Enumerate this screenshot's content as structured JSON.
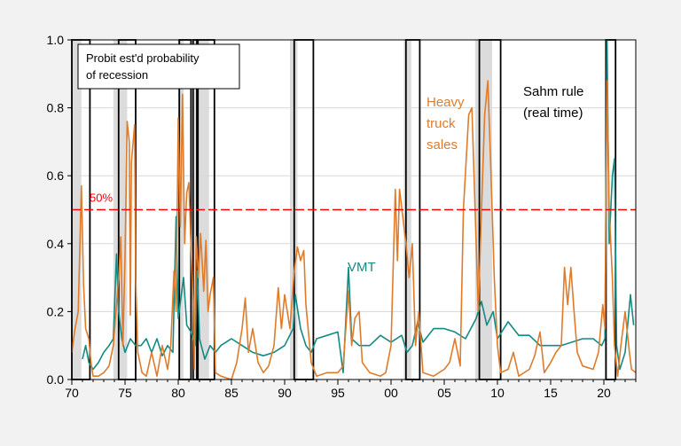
{
  "chart_data": {
    "type": "line",
    "title": "",
    "xlabel": "",
    "ylabel": "",
    "xlim": [
      1970,
      2023
    ],
    "ylim": [
      0,
      1
    ],
    "grid": "horizontal",
    "x_ticks": [
      1970,
      1975,
      1980,
      1985,
      1990,
      1995,
      2000,
      2005,
      2010,
      2015,
      2020
    ],
    "x_tick_labels": [
      "70",
      "75",
      "80",
      "85",
      "90",
      "95",
      "00",
      "05",
      "10",
      "15",
      "20"
    ],
    "y_ticks": [
      0,
      0.2,
      0.4,
      0.6,
      0.8,
      1.0
    ],
    "y_tick_labels": [
      "0.0",
      "0.2",
      "0.4",
      "0.6",
      "0.8",
      "1.0"
    ],
    "legend_box_text": [
      "Probit est'd probability",
      "of recession"
    ],
    "threshold": {
      "value": 0.5,
      "label": "50%",
      "color": "#ff0000"
    },
    "recession_shading": [
      [
        1969.9,
        1970.9
      ],
      [
        1973.9,
        1975.2
      ],
      [
        1980.0,
        1980.5
      ],
      [
        1981.5,
        1982.9
      ],
      [
        1990.5,
        1991.2
      ],
      [
        2001.2,
        2001.9
      ],
      [
        2007.9,
        2009.5
      ],
      [
        2020.1,
        2020.3
      ]
    ],
    "sahm_rule_periods": {
      "label": [
        "Sahm rule",
        "(real time)"
      ],
      "color": "#000000",
      "periods": [
        [
          1970.0,
          1971.7
        ],
        [
          1974.4,
          1976.0
        ],
        [
          1980.1,
          1981.2
        ],
        [
          1981.4,
          1981.75
        ],
        [
          1981.85,
          1983.4
        ],
        [
          1990.9,
          1992.7
        ],
        [
          2001.4,
          2002.7
        ],
        [
          2008.3,
          2010.3
        ],
        [
          2020.2,
          2021.1
        ]
      ]
    },
    "series": [
      {
        "name": "Heavy truck sales",
        "label_lines": [
          "Heavy",
          "truck",
          "sales"
        ],
        "color": "#e07b2a",
        "points": [
          [
            1970.0,
            0.08
          ],
          [
            1970.3,
            0.15
          ],
          [
            1970.6,
            0.2
          ],
          [
            1970.9,
            0.57
          ],
          [
            1971.1,
            0.28
          ],
          [
            1971.3,
            0.15
          ],
          [
            1971.6,
            0.12
          ],
          [
            1971.8,
            0.05
          ],
          [
            1972.0,
            0.01
          ],
          [
            1972.5,
            0.01
          ],
          [
            1973.0,
            0.02
          ],
          [
            1973.5,
            0.04
          ],
          [
            1973.9,
            0.1
          ],
          [
            1974.2,
            0.22
          ],
          [
            1974.4,
            0.3
          ],
          [
            1974.6,
            0.42
          ],
          [
            1974.8,
            0.1
          ],
          [
            1975.0,
            0.36
          ],
          [
            1975.2,
            0.76
          ],
          [
            1975.4,
            0.7
          ],
          [
            1975.5,
            0.19
          ],
          [
            1975.6,
            0.64
          ],
          [
            1975.9,
            0.75
          ],
          [
            1976.0,
            0.3
          ],
          [
            1976.2,
            0.08
          ],
          [
            1976.6,
            0.02
          ],
          [
            1977.0,
            0.01
          ],
          [
            1977.5,
            0.08
          ],
          [
            1978.0,
            0.01
          ],
          [
            1978.5,
            0.1
          ],
          [
            1979.0,
            0.03
          ],
          [
            1979.3,
            0.1
          ],
          [
            1979.6,
            0.32
          ],
          [
            1979.8,
            0.2
          ],
          [
            1980.0,
            0.77
          ],
          [
            1980.2,
            0.45
          ],
          [
            1980.4,
            0.84
          ],
          [
            1980.6,
            0.4
          ],
          [
            1980.8,
            0.55
          ],
          [
            1981.0,
            0.58
          ],
          [
            1981.2,
            0.39
          ],
          [
            1981.4,
            0.22
          ],
          [
            1981.5,
            0.03
          ],
          [
            1981.7,
            0.42
          ],
          [
            1981.9,
            0.3
          ],
          [
            1982.1,
            0.43
          ],
          [
            1982.4,
            0.26
          ],
          [
            1982.6,
            0.41
          ],
          [
            1982.8,
            0.2
          ],
          [
            1983.0,
            0.25
          ],
          [
            1983.3,
            0.3
          ],
          [
            1983.5,
            0.02
          ],
          [
            1984.0,
            0.01
          ],
          [
            1985.0,
            0.0
          ],
          [
            1985.5,
            0.05
          ],
          [
            1986.0,
            0.15
          ],
          [
            1986.3,
            0.24
          ],
          [
            1986.6,
            0.08
          ],
          [
            1987.0,
            0.15
          ],
          [
            1987.5,
            0.05
          ],
          [
            1988.0,
            0.02
          ],
          [
            1988.5,
            0.04
          ],
          [
            1989.0,
            0.1
          ],
          [
            1989.4,
            0.27
          ],
          [
            1989.7,
            0.15
          ],
          [
            1990.0,
            0.25
          ],
          [
            1990.5,
            0.15
          ],
          [
            1990.9,
            0.32
          ],
          [
            1991.2,
            0.39
          ],
          [
            1991.5,
            0.35
          ],
          [
            1991.8,
            0.38
          ],
          [
            1992.0,
            0.22
          ],
          [
            1992.5,
            0.05
          ],
          [
            1993.0,
            0.01
          ],
          [
            1994.0,
            0.02
          ],
          [
            1995.0,
            0.02
          ],
          [
            1995.5,
            0.04
          ],
          [
            1996.0,
            0.26
          ],
          [
            1996.3,
            0.1
          ],
          [
            1996.6,
            0.18
          ],
          [
            1997.0,
            0.2
          ],
          [
            1997.3,
            0.05
          ],
          [
            1998.0,
            0.02
          ],
          [
            1999.0,
            0.01
          ],
          [
            1999.5,
            0.02
          ],
          [
            2000.0,
            0.1
          ],
          [
            2000.4,
            0.56
          ],
          [
            2000.6,
            0.35
          ],
          [
            2000.8,
            0.56
          ],
          [
            2001.1,
            0.48
          ],
          [
            2001.4,
            0.4
          ],
          [
            2001.7,
            0.3
          ],
          [
            2002.0,
            0.4
          ],
          [
            2002.3,
            0.1
          ],
          [
            2002.6,
            0.2
          ],
          [
            2003.0,
            0.02
          ],
          [
            2004.0,
            0.01
          ],
          [
            2005.0,
            0.03
          ],
          [
            2005.5,
            0.05
          ],
          [
            2006.0,
            0.12
          ],
          [
            2006.5,
            0.04
          ],
          [
            2006.8,
            0.5
          ],
          [
            2007.3,
            0.78
          ],
          [
            2007.6,
            0.8
          ],
          [
            2007.9,
            0.5
          ],
          [
            2008.2,
            0.2
          ],
          [
            2008.5,
            0.5
          ],
          [
            2008.8,
            0.78
          ],
          [
            2009.1,
            0.88
          ],
          [
            2009.4,
            0.6
          ],
          [
            2009.7,
            0.3
          ],
          [
            2010.0,
            0.1
          ],
          [
            2010.3,
            0.02
          ],
          [
            2011.0,
            0.03
          ],
          [
            2011.5,
            0.08
          ],
          [
            2012.0,
            0.01
          ],
          [
            2013.0,
            0.03
          ],
          [
            2013.5,
            0.07
          ],
          [
            2014.0,
            0.14
          ],
          [
            2014.4,
            0.02
          ],
          [
            2015.0,
            0.05
          ],
          [
            2015.5,
            0.08
          ],
          [
            2016.0,
            0.1
          ],
          [
            2016.3,
            0.33
          ],
          [
            2016.6,
            0.22
          ],
          [
            2016.9,
            0.33
          ],
          [
            2017.2,
            0.2
          ],
          [
            2017.5,
            0.08
          ],
          [
            2018.0,
            0.04
          ],
          [
            2019.0,
            0.03
          ],
          [
            2019.5,
            0.08
          ],
          [
            2019.9,
            0.22
          ],
          [
            2020.1,
            0.15
          ],
          [
            2020.3,
            0.88
          ],
          [
            2020.5,
            0.5
          ],
          [
            2020.8,
            0.3
          ],
          [
            2021.0,
            0.1
          ],
          [
            2021.3,
            0.01
          ],
          [
            2021.6,
            0.1
          ],
          [
            2022.0,
            0.2
          ],
          [
            2022.4,
            0.08
          ],
          [
            2022.6,
            0.03
          ],
          [
            2023.0,
            0.02
          ]
        ]
      },
      {
        "name": "VMT",
        "label_lines": [
          "VMT"
        ],
        "color": "#138a84",
        "points": [
          [
            1971.0,
            0.06
          ],
          [
            1971.3,
            0.1
          ],
          [
            1971.6,
            0.05
          ],
          [
            1972.0,
            0.03
          ],
          [
            1972.5,
            0.05
          ],
          [
            1973.0,
            0.08
          ],
          [
            1973.5,
            0.1
          ],
          [
            1973.9,
            0.12
          ],
          [
            1974.2,
            0.37
          ],
          [
            1974.4,
            0.2
          ],
          [
            1974.7,
            0.12
          ],
          [
            1975.0,
            0.08
          ],
          [
            1975.5,
            0.12
          ],
          [
            1976.0,
            0.1
          ],
          [
            1976.5,
            0.1
          ],
          [
            1977.0,
            0.12
          ],
          [
            1977.5,
            0.08
          ],
          [
            1978.0,
            0.12
          ],
          [
            1978.5,
            0.07
          ],
          [
            1979.0,
            0.1
          ],
          [
            1979.5,
            0.08
          ],
          [
            1979.8,
            0.48
          ],
          [
            1980.0,
            0.18
          ],
          [
            1980.5,
            0.3
          ],
          [
            1980.8,
            0.16
          ],
          [
            1981.2,
            0.14
          ],
          [
            1981.6,
            0.1
          ],
          [
            1981.8,
            0.32
          ],
          [
            1982.0,
            0.12
          ],
          [
            1982.5,
            0.06
          ],
          [
            1983.0,
            0.1
          ],
          [
            1983.5,
            0.08
          ],
          [
            1984.0,
            0.1
          ],
          [
            1985.0,
            0.12
          ],
          [
            1986.0,
            0.1
          ],
          [
            1987.0,
            0.08
          ],
          [
            1988.0,
            0.07
          ],
          [
            1989.0,
            0.08
          ],
          [
            1990.0,
            0.1
          ],
          [
            1990.8,
            0.15
          ],
          [
            1991.0,
            0.25
          ],
          [
            1991.5,
            0.15
          ],
          [
            1992.0,
            0.1
          ],
          [
            1992.5,
            0.08
          ],
          [
            1993.0,
            0.12
          ],
          [
            1994.0,
            0.13
          ],
          [
            1995.0,
            0.14
          ],
          [
            1995.5,
            0.02
          ],
          [
            1996.0,
            0.33
          ],
          [
            1996.3,
            0.12
          ],
          [
            1997.0,
            0.1
          ],
          [
            1998.0,
            0.1
          ],
          [
            1999.0,
            0.13
          ],
          [
            2000.0,
            0.11
          ],
          [
            2001.0,
            0.13
          ],
          [
            2001.5,
            0.08
          ],
          [
            2002.0,
            0.1
          ],
          [
            2002.5,
            0.17
          ],
          [
            2003.0,
            0.11
          ],
          [
            2004.0,
            0.15
          ],
          [
            2005.0,
            0.15
          ],
          [
            2006.0,
            0.14
          ],
          [
            2007.0,
            0.12
          ],
          [
            2008.0,
            0.18
          ],
          [
            2008.5,
            0.23
          ],
          [
            2009.0,
            0.16
          ],
          [
            2009.6,
            0.2
          ],
          [
            2010.0,
            0.12
          ],
          [
            2011.0,
            0.17
          ],
          [
            2012.0,
            0.13
          ],
          [
            2013.0,
            0.13
          ],
          [
            2014.0,
            0.1
          ],
          [
            2015.0,
            0.1
          ],
          [
            2016.0,
            0.1
          ],
          [
            2017.0,
            0.11
          ],
          [
            2018.0,
            0.12
          ],
          [
            2019.0,
            0.12
          ],
          [
            2019.8,
            0.1
          ],
          [
            2020.1,
            0.12
          ],
          [
            2020.3,
            1.0
          ],
          [
            2020.5,
            0.4
          ],
          [
            2020.8,
            0.6
          ],
          [
            2021.0,
            0.65
          ],
          [
            2021.2,
            0.1
          ],
          [
            2021.5,
            0.03
          ],
          [
            2022.0,
            0.08
          ],
          [
            2022.5,
            0.25
          ],
          [
            2022.8,
            0.16
          ]
        ]
      }
    ]
  }
}
